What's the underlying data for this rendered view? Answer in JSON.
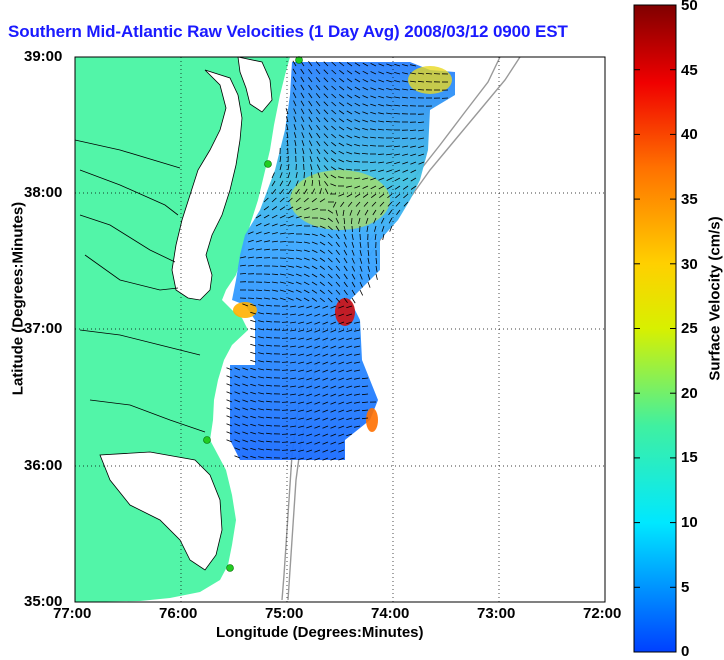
{
  "title": "Southern Mid-Atlantic Raw Velocities (1 Day Avg) 2008/03/12 0900 EST",
  "xaxis": {
    "label": "Longitude (Degrees:Minutes)",
    "ticks": [
      "77:00",
      "76:00",
      "75:00",
      "74:00",
      "73:00",
      "72:00"
    ]
  },
  "yaxis": {
    "label": "Latitude (Degrees:Minutes)",
    "ticks": [
      "39:00",
      "38:00",
      "37:00",
      "36:00",
      "35:00"
    ]
  },
  "colorbar": {
    "label": "Surface Velocity (cm/s)",
    "ticks": [
      "50",
      "45",
      "40",
      "35",
      "30",
      "25",
      "20",
      "15",
      "10",
      "5",
      "0"
    ],
    "min": 0,
    "max": 50
  },
  "colors": {
    "land": "#52f5a8",
    "water": "#ffffff",
    "title": "#1a1aff"
  }
}
